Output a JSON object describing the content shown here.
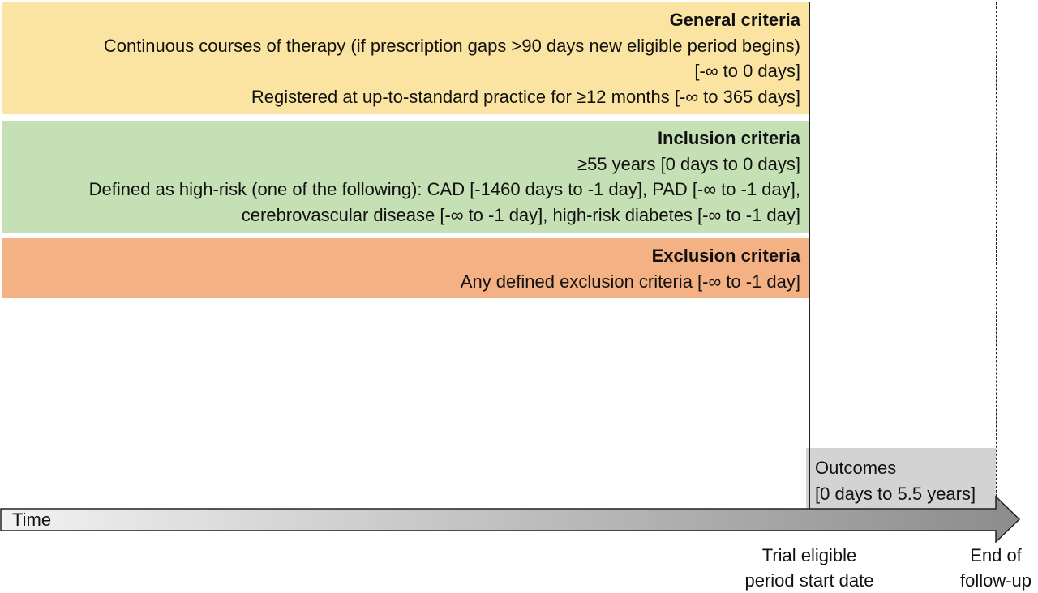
{
  "colors": {
    "general_bg": "#fbe4a1",
    "inclusion_bg": "#c5e0b4",
    "exclusion_bg": "#f4b183",
    "outcomes_bg": "#d3d3d3",
    "arrow_start": "#f2f2f2",
    "arrow_end": "#8c8c8c"
  },
  "general": {
    "heading": "General criteria",
    "line1": "Continuous courses of therapy (if prescription gaps >90 days new eligible period begins)",
    "line2": "[-∞ to 0 days]",
    "line3": "Registered at up-to-standard practice for ≥12 months [-∞ to 365 days]"
  },
  "inclusion": {
    "heading": "Inclusion criteria",
    "line1": "≥55 years [0 days to 0 days]",
    "line2": "Defined as high-risk (one of the following): CAD [-1460 days to -1 day], PAD [-∞ to -1 day],",
    "line3": "cerebrovascular disease [-∞ to -1 day], high-risk diabetes [-∞ to -1 day]"
  },
  "exclusion": {
    "heading": "Exclusion criteria",
    "line1": "Any defined exclusion criteria [-∞ to -1 day]"
  },
  "outcomes": {
    "line1": "Outcomes",
    "line2": "[0 days to 5.5 years]"
  },
  "axis": {
    "label": "Time"
  },
  "markers": {
    "trial_line1": "Trial eligible",
    "trial_line2": "period start date",
    "end_line1": "End of",
    "end_line2": "follow-up"
  }
}
